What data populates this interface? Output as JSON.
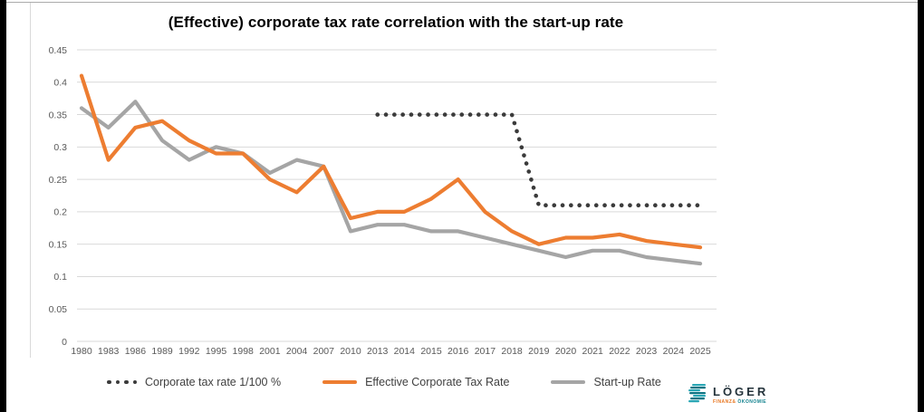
{
  "title": "(Effective) corporate tax rate correlation with the start-up rate",
  "colors": {
    "gridline": "#D9D9D9",
    "axis_text": "#595959",
    "legend_text": "#3F3F3F",
    "edge_bars": "#000000",
    "orange": "#ED7D31",
    "gray": "#A5A5A5",
    "dotted": "#3B3B3B"
  },
  "chart_data": {
    "type": "line",
    "title": "(Effective) corporate tax rate correlation with the start-up rate",
    "xlabel": "",
    "ylabel": "",
    "ylim": [
      0,
      0.45
    ],
    "grid": "horizontal",
    "legend_position": "bottom",
    "y_ticks": [
      "0.45",
      "0.4",
      "0.35",
      "0.3",
      "0.25",
      "0.2",
      "0.15",
      "0.1",
      "0.05",
      "0"
    ],
    "categories": [
      "1980",
      "1983",
      "1986",
      "1989",
      "1992",
      "1995",
      "1998",
      "2001",
      "2004",
      "2007",
      "2010",
      "2013",
      "2014",
      "2015",
      "2016",
      "2017",
      "2018",
      "2019",
      "2020",
      "2021",
      "2022",
      "2023",
      "2024",
      "2025"
    ],
    "series": [
      {
        "name": "Corporate tax rate 1/100 %",
        "style": "dotted",
        "color": "#3B3B3B",
        "values": [
          null,
          null,
          null,
          null,
          null,
          null,
          null,
          null,
          null,
          null,
          null,
          0.35,
          0.35,
          0.35,
          0.35,
          0.35,
          0.35,
          0.21,
          0.21,
          0.21,
          0.21,
          0.21,
          0.21,
          0.21
        ]
      },
      {
        "name": "Effective Corporate Tax Rate",
        "style": "solid",
        "color": "#ED7D31",
        "values": [
          0.41,
          0.28,
          0.33,
          0.34,
          0.31,
          0.29,
          0.29,
          0.25,
          0.23,
          0.27,
          0.19,
          0.2,
          0.2,
          0.22,
          0.25,
          0.2,
          0.17,
          0.15,
          0.16,
          0.16,
          0.165,
          0.155,
          0.15,
          0.145
        ]
      },
      {
        "name": "Start-up Rate",
        "style": "solid",
        "color": "#A5A5A5",
        "values": [
          0.36,
          0.33,
          0.37,
          0.31,
          0.28,
          0.3,
          0.29,
          0.26,
          0.28,
          0.27,
          0.17,
          0.18,
          0.18,
          0.17,
          0.17,
          0.16,
          0.15,
          0.14,
          0.13,
          0.14,
          0.14,
          0.13,
          0.125,
          0.12
        ]
      }
    ]
  },
  "logo": {
    "brand": "LÖGER",
    "tagline_left": "FINANZ&",
    "tagline_right": "ÖKONOMIE"
  }
}
